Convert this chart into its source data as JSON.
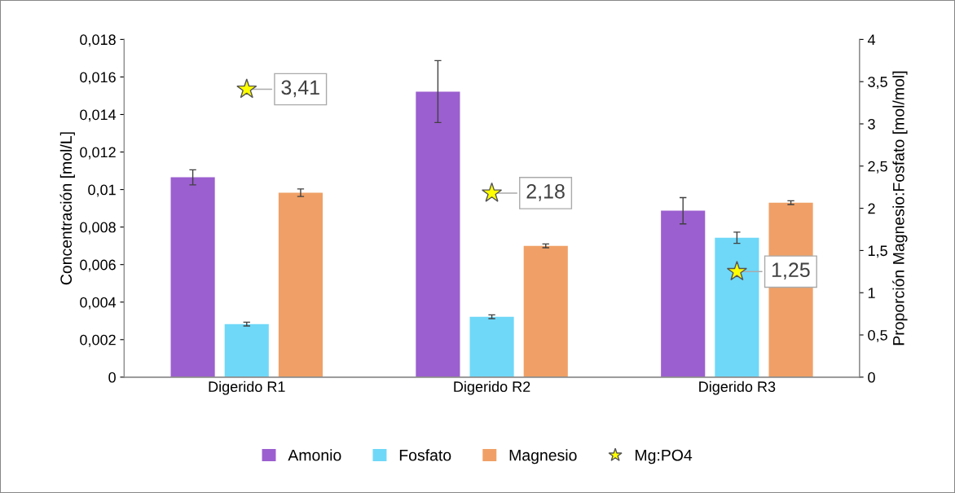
{
  "chart_data": {
    "type": "bar",
    "categories": [
      "Digerido R1",
      "Digerido R2",
      "Digerido R3"
    ],
    "ylabel": "Concentración [mol/L]",
    "y2label": "Proporción Magnesio:Fosfato [mol/mol]",
    "series": [
      {
        "name": "Amonio",
        "color": "#9b5fcf",
        "values": [
          0.01065,
          0.01522,
          0.00887
        ],
        "errors": [
          0.0004,
          0.00165,
          0.0007
        ]
      },
      {
        "name": "Fosfato",
        "color": "#6fd8f8",
        "values": [
          0.00283,
          0.00322,
          0.00743
        ],
        "errors": [
          0.0001,
          0.0001,
          0.0003
        ]
      },
      {
        "name": "Magnesio",
        "color": "#f0a066",
        "values": [
          0.00983,
          0.007,
          0.0093
        ],
        "errors": [
          0.0002,
          0.0001,
          0.0001
        ]
      },
      {
        "name": "Mg:PO4",
        "type": "scatter",
        "axis": "y2",
        "color": "#ffff00",
        "marker": "star",
        "values": [
          3.41,
          2.18,
          1.25
        ],
        "value_labels": [
          "3,41",
          "2,18",
          "1,25"
        ]
      }
    ],
    "ylim": [
      0,
      0.018
    ],
    "yticks": [
      0,
      {
        "value": 0.002,
        "label": "0,002"
      },
      {
        "value": 0.004,
        "label": "0,004"
      },
      {
        "value": 0.006,
        "label": "0,006"
      },
      {
        "value": 0.008,
        "label": "0,008"
      },
      {
        "value": 0.01,
        "label": "0,01"
      },
      {
        "value": 0.012,
        "label": "0,012"
      },
      {
        "value": 0.014,
        "label": "0,014"
      },
      {
        "value": 0.016,
        "label": "0,016"
      },
      {
        "value": 0.018,
        "label": "0,018"
      }
    ],
    "y2lim": [
      0,
      4
    ],
    "y2ticks": [
      0,
      {
        "value": 0.5,
        "label": "0,5"
      },
      1,
      {
        "value": 1.5,
        "label": "1,5"
      },
      2,
      {
        "value": 2.5,
        "label": "2,5"
      },
      3,
      {
        "value": 3.5,
        "label": "3,5"
      },
      4
    ],
    "legend": "bottom",
    "grid": false
  }
}
